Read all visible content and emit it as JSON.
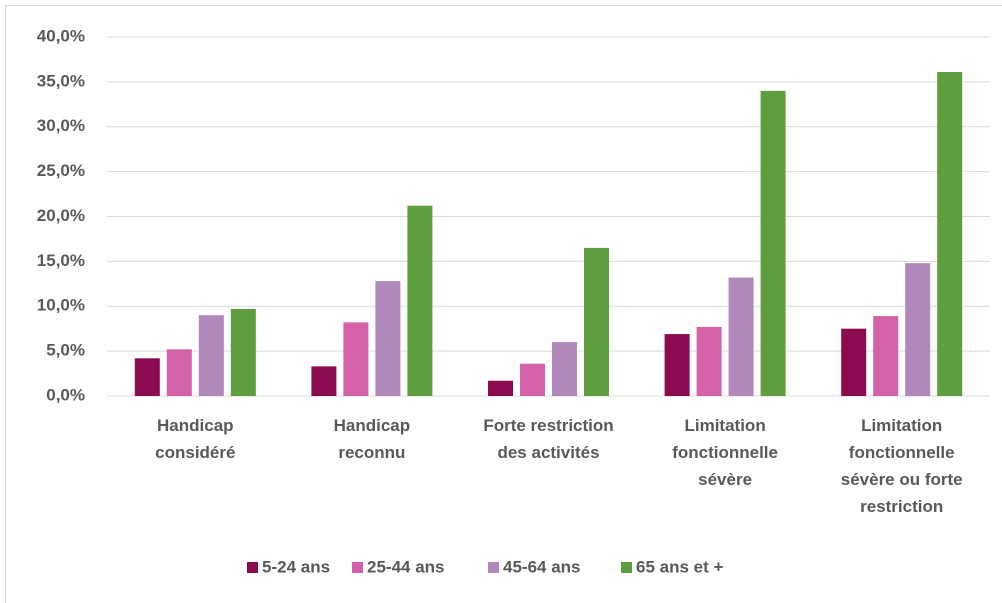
{
  "chart_data": {
    "type": "bar",
    "categories": [
      [
        "Handicap",
        "considéré"
      ],
      [
        "Handicap",
        "reconnu"
      ],
      [
        "Forte restriction",
        "des activités"
      ],
      [
        "Limitation",
        "fonctionnelle",
        "sévère"
      ],
      [
        "Limitation",
        "fonctionnelle",
        "sévère ou forte",
        "restriction"
      ]
    ],
    "series": [
      {
        "name": "5-24 ans",
        "color": "#8b0a50",
        "values": [
          4.2,
          3.3,
          1.7,
          6.9,
          7.5
        ]
      },
      {
        "name": "25-44 ans",
        "color": "#d462a8",
        "values": [
          5.2,
          8.2,
          3.6,
          7.7,
          8.9
        ]
      },
      {
        "name": "45-64 ans",
        "color": "#b088bc",
        "values": [
          9.0,
          12.8,
          6.0,
          13.2,
          14.8
        ]
      },
      {
        "name": "65 ans et +",
        "color": "#5e9e3e",
        "values": [
          9.7,
          21.2,
          16.5,
          34.0,
          36.1
        ]
      }
    ],
    "ylim": [
      0,
      40
    ],
    "yticks": [
      {
        "value": 0,
        "label": "0,0%"
      },
      {
        "value": 5,
        "label": "5,0%"
      },
      {
        "value": 10,
        "label": "10,0%"
      },
      {
        "value": 15,
        "label": "15,0%"
      },
      {
        "value": 20,
        "label": "20,0%"
      },
      {
        "value": 25,
        "label": "25,0%"
      },
      {
        "value": 30,
        "label": "30,0%"
      },
      {
        "value": 35,
        "label": "35,0%"
      },
      {
        "value": 40,
        "label": "40,0%"
      }
    ],
    "grid": true,
    "legend": "bottom"
  }
}
